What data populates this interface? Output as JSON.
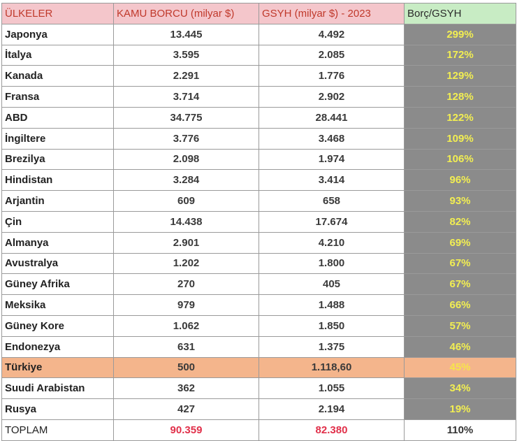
{
  "headers": {
    "country": "ÜLKELER",
    "debt": "KAMU BORCU (milyar $)",
    "gdp": "GSYH (milyar $) - 2023",
    "ratio": "Borç/GSYH"
  },
  "rows": [
    {
      "country": "Japonya",
      "debt": "13.445",
      "gdp": "4.492",
      "ratio": "299%"
    },
    {
      "country": "İtalya",
      "debt": "3.595",
      "gdp": "2.085",
      "ratio": "172%"
    },
    {
      "country": "Kanada",
      "debt": "2.291",
      "gdp": "1.776",
      "ratio": "129%"
    },
    {
      "country": "Fransa",
      "debt": "3.714",
      "gdp": "2.902",
      "ratio": "128%"
    },
    {
      "country": "ABD",
      "debt": "34.775",
      "gdp": "28.441",
      "ratio": "122%"
    },
    {
      "country": "İngiltere",
      "debt": "3.776",
      "gdp": "3.468",
      "ratio": "109%"
    },
    {
      "country": "Brezilya",
      "debt": "2.098",
      "gdp": "1.974",
      "ratio": "106%"
    },
    {
      "country": "Hindistan",
      "debt": "3.284",
      "gdp": "3.414",
      "ratio": "96%"
    },
    {
      "country": "Arjantin",
      "debt": "609",
      "gdp": "658",
      "ratio": "93%"
    },
    {
      "country": "Çin",
      "debt": "14.438",
      "gdp": "17.674",
      "ratio": "82%"
    },
    {
      "country": "Almanya",
      "debt": "2.901",
      "gdp": "4.210",
      "ratio": "69%"
    },
    {
      "country": "Avustralya",
      "debt": "1.202",
      "gdp": "1.800",
      "ratio": "67%"
    },
    {
      "country": "Güney Afrika",
      "debt": "270",
      "gdp": "405",
      "ratio": "67%"
    },
    {
      "country": "Meksika",
      "debt": "979",
      "gdp": "1.488",
      "ratio": "66%"
    },
    {
      "country": "Güney Kore",
      "debt": "1.062",
      "gdp": "1.850",
      "ratio": "57%"
    },
    {
      "country": "Endonezya",
      "debt": "631",
      "gdp": "1.375",
      "ratio": "46%"
    },
    {
      "country": "Türkiye",
      "debt": "500",
      "gdp": "1.118,60",
      "ratio": "45%"
    },
    {
      "country": "Suudi Arabistan",
      "debt": "362",
      "gdp": "1.055",
      "ratio": "34%"
    },
    {
      "country": "Rusya",
      "debt": "427",
      "gdp": "2.194",
      "ratio": "19%"
    }
  ],
  "total": {
    "label": "TOPLAM",
    "debt": "90.359",
    "gdp": "82.380",
    "ratio": "110%"
  },
  "colors": {
    "header_pink": "#f4c6cb",
    "header_green": "#c8ecc4",
    "ratio_bg": "#8b8b8b",
    "ratio_text": "#f2ee52",
    "highlight_row": "#f4b58c",
    "total_red": "#e1304a"
  }
}
